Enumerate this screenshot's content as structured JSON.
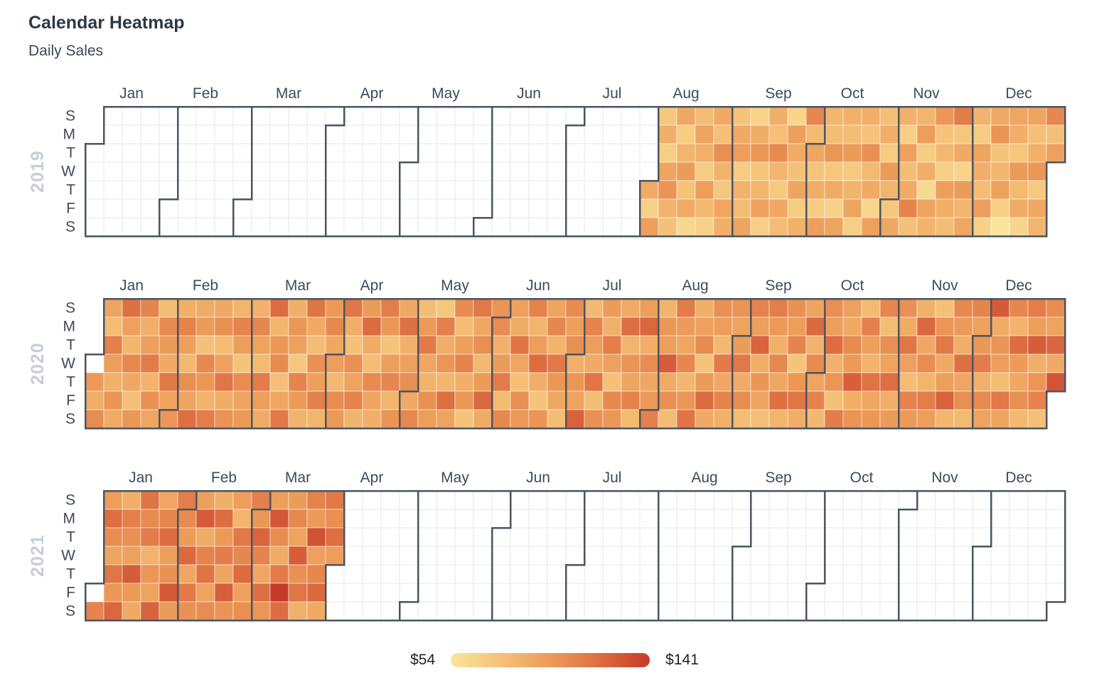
{
  "chart_data": {
    "type": "heatmap",
    "subtype": "calendar",
    "title": "Calendar Heatmap",
    "subtitle": "Daily Sales",
    "unit": "$",
    "legend": {
      "min": 54,
      "max": 141,
      "min_label": "$54",
      "max_label": "$141",
      "position": "bottom"
    },
    "day_labels": [
      "S",
      "M",
      "T",
      "W",
      "T",
      "F",
      "S"
    ],
    "month_labels": [
      "Jan",
      "Feb",
      "Mar",
      "Apr",
      "May",
      "Jun",
      "Jul",
      "Aug",
      "Sep",
      "Oct",
      "Nov",
      "Dec"
    ],
    "colorscale": [
      {
        "value": 54,
        "color": "#FAE49C"
      },
      {
        "value": 76,
        "color": "#F5C178"
      },
      {
        "value": 98,
        "color": "#EC9A58"
      },
      {
        "value": 120,
        "color": "#DC6B40"
      },
      {
        "value": 141,
        "color": "#C63B28"
      }
    ],
    "colors": {
      "month_border": "#4A5462",
      "gridline": "#E4E7EB",
      "empty_cell": "#FFFFFF",
      "cell_gap_stroke": "rgba(255,255,255,0.55)",
      "label_text": "#3E4A5A",
      "year_text": "#C7CDD6"
    },
    "years": [
      {
        "label": "2019",
        "start": "2019-08-01",
        "values": [
          88,
          66,
          95,
          72,
          86,
          68,
          92,
          101,
          84,
          76,
          90,
          69,
          83,
          97,
          74,
          88,
          62,
          79,
          93,
          85,
          70,
          96,
          81,
          66,
          89,
          77,
          103,
          84,
          72,
          91,
          86,
          75,
          89,
          96,
          70,
          84,
          78,
          92,
          65,
          87,
          99,
          73,
          82,
          94,
          68,
          86,
          77,
          105,
          83,
          71,
          90,
          79,
          64,
          95,
          88,
          76,
          92,
          69,
          85,
          107,
          80,
          91,
          74,
          87,
          69,
          96,
          82,
          78,
          100,
          73,
          88,
          66,
          93,
          85,
          79,
          97,
          71,
          84,
          92,
          68,
          86,
          75,
          102,
          80,
          89,
          63,
          94,
          77,
          87,
          70,
          98,
          83,
          72,
          90,
          85,
          67,
          94,
          78,
          88,
          108,
          76,
          83,
          96,
          70,
          87,
          61,
          92,
          84,
          99,
          74,
          81,
          68,
          95,
          86,
          79,
          112,
          73,
          89,
          65,
          97,
          82,
          91,
          84,
          70,
          93,
          87,
          78,
          96,
          66,
          89,
          101,
          75,
          82,
          94,
          68,
          54,
          91,
          86,
          73,
          97,
          80,
          88,
          64,
          92,
          77,
          85,
          99,
          71,
          90,
          83,
          107,
          76,
          94
        ]
      },
      {
        "label": "2020",
        "start": "2020-01-01",
        "values": [
          null,
          98,
          87,
          104,
          92,
          79,
          110,
          96,
          85,
          101,
          88,
          117,
          94,
          82,
          106,
          90,
          77,
          99,
          108,
          86,
          95,
          112,
          84,
          102,
          91,
          78,
          105,
          97,
          89,
          114,
          93,
          100,
          86,
          109,
          95,
          81,
          103,
          92,
          118,
          88,
          97,
          76,
          106,
          99,
          84,
          111,
          90,
          102,
          79,
          94,
          115,
          87,
          101,
          83,
          108,
          96,
          74,
          104,
          92,
          98,
          85,
          107,
          93,
          80,
          112,
          96,
          88,
          119,
          82,
          99,
          105,
          77,
          91,
          113,
          86,
          100,
          94,
          72,
          108,
          97,
          84,
          116,
          89,
          78,
          102,
          95,
          110,
          83,
          98,
          106,
          90,
          95,
          81,
          104,
          98,
          115,
          87,
          76,
          102,
          93,
          109,
          84,
          97,
          120,
          88,
          79,
          105,
          92,
          86,
          111,
          99,
          75,
          96,
          107,
          83,
          101,
          90,
          117,
          85,
          94,
          103,
          89,
          106,
          78,
          98,
          113,
          91,
          84,
          102,
          96,
          73,
          110,
          87,
          100,
          82,
          118,
          93,
          105,
          79,
          95,
          108,
          86,
          99,
          74,
          114,
          90,
          103,
          81,
          97,
          121,
          88,
          101,
          104,
          85,
          97,
          112,
          80,
          106,
          94,
          88,
          116,
          91,
          77,
          103,
          98,
          109,
          83,
          96,
          119,
          87,
          75,
          101,
          92,
          107,
          84,
          113,
          99,
          90,
          78,
          105,
          95,
          102,
          86,
          100,
          93,
          124,
          81,
          108,
          96,
          89,
          115,
          79,
          102,
          97,
          85,
          111,
          94,
          76,
          106,
          99,
          88,
          118,
          83,
          101,
          92,
          109,
          80,
          96,
          122,
          87,
          104,
          91,
          98,
          110,
          84,
          99,
          95,
          126,
          88,
          103,
          78,
          112,
          97,
          91,
          107,
          82,
          100,
          116,
          86,
          94,
          105,
          75,
          98,
          120,
          89,
          102,
          96,
          81,
          113,
          90,
          108,
          85,
          101,
          93,
          97,
          114,
          88,
          104,
          79,
          109,
          95,
          123,
          86,
          100,
          92,
          77,
          111,
          98,
          85,
          106,
          90,
          117,
          83,
          102,
          96,
          108,
          74,
          99,
          115,
          87,
          93,
          121,
          84,
          105,
          92,
          108,
          81,
          103,
          96,
          119,
          85,
          100,
          76,
          112,
          94,
          89,
          105,
          98,
          125,
          87,
          101,
          80,
          110,
          95,
          84,
          116,
          91,
          99,
          107,
          78,
          103,
          93,
          118,
          86,
          97,
          102,
          88,
          115,
          94,
          79,
          109,
          97,
          85,
          121,
          90,
          104,
          83,
          111,
          96,
          76,
          100,
          113,
          89,
          95,
          124,
          82,
          106,
          98,
          87,
          117,
          91,
          103,
          80,
          108,
          94,
          99,
          112,
          85,
          105,
          93,
          127,
          88,
          101,
          96,
          78,
          114,
          92,
          107,
          84,
          119,
          97,
          90,
          103,
          81,
          111,
          95,
          126,
          86,
          100,
          108,
          77,
          104,
          93,
          122,
          89,
          130
        ]
      },
      {
        "label": "2021",
        "start": "2021-01-01",
        "values": [
          null,
          108,
          96,
          118,
          104,
          92,
          115,
          99,
          122,
          87,
          110,
          103,
          94,
          126,
          98,
          89,
          116,
          105,
          112,
          84,
          100,
          93,
          124,
          91,
          107,
          119,
          95,
          102,
          128,
          97,
          111,
          105,
          97,
          121,
          90,
          113,
          102,
          95,
          127,
          88,
          109,
          116,
          93,
          104,
          86,
          119,
          98,
          111,
          92,
          125,
          101,
          96,
          83,
          114,
          107,
          120,
          94,
          103,
          110,
          99,
          123,
          108,
          91,
          117,
          100,
          95,
          129,
          104,
          88,
          112,
          141,
          119,
          97,
          106,
          93,
          126,
          102,
          115,
          85,
          109,
          98,
          131,
          94,
          107,
          121,
          89,
          113,
          103,
          118,
          96
        ]
      }
    ]
  }
}
